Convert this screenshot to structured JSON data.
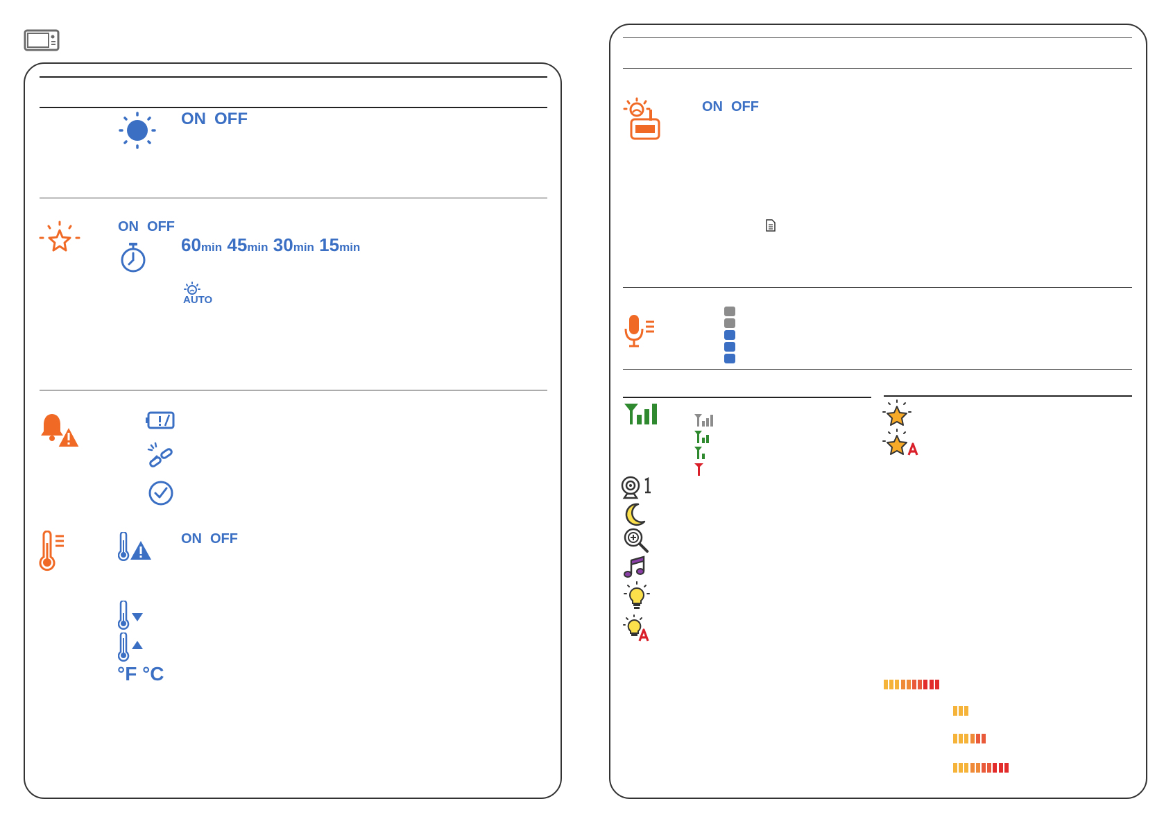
{
  "left": {
    "brightness": {
      "on": "ON",
      "off": "OFF"
    },
    "night_light": {
      "on": "ON",
      "off": "OFF",
      "timer": [
        {
          "num": "60",
          "unit": "min"
        },
        {
          "num": "45",
          "unit": "min"
        },
        {
          "num": "30",
          "unit": "min"
        },
        {
          "num": "15",
          "unit": "min"
        }
      ],
      "auto_label": "AUTO"
    },
    "temperature": {
      "on": "ON",
      "off": "OFF",
      "unit_f": "°F",
      "unit_c": "°C"
    }
  },
  "right": {
    "camera_light": {
      "on": "ON",
      "off": "OFF"
    },
    "mic_level_blocks": [
      {
        "color": "#8c8c8c"
      },
      {
        "color": "#8c8c8c"
      },
      {
        "color": "#3a6fc4"
      },
      {
        "color": "#3a6fc4"
      },
      {
        "color": "#3a6fc4"
      }
    ],
    "volume_bars": {
      "full": [
        "#f5b33a",
        "#f5b33a",
        "#f5b33a",
        "#ee8a38",
        "#ee8a38",
        "#e85a3a",
        "#e85a3a",
        "#e22c2c",
        "#e22c2c",
        "#e22c2c"
      ],
      "low": [
        "#f5b33a",
        "#f5b33a",
        "#f5b33a"
      ],
      "mid": [
        "#f5b33a",
        "#f5b33a",
        "#f5b33a",
        "#ee8a38",
        "#e85a3a",
        "#e85a3a"
      ],
      "high": [
        "#f5b33a",
        "#f5b33a",
        "#f5b33a",
        "#ee8a38",
        "#ee8a38",
        "#e85a3a",
        "#e85a3a",
        "#e22c2c",
        "#e22c2c",
        "#e22c2c"
      ]
    }
  },
  "colors": {
    "blue": "#3a6fc4",
    "orange": "#f06a25",
    "green": "#2f8a2f",
    "red": "#d9202a",
    "gray": "#8c8c8c"
  }
}
